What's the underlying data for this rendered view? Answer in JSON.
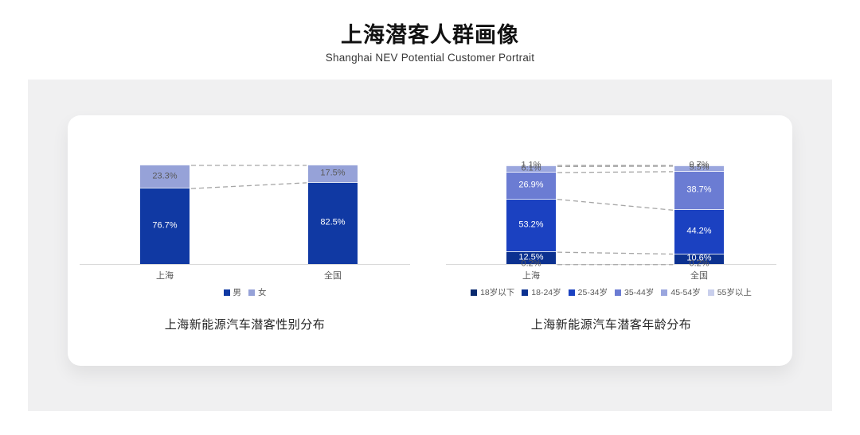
{
  "page": {
    "title": "上海潜客人群画像",
    "subtitle": "Shanghai NEV Potential Customer Portrait"
  },
  "colors": {
    "band_bg": "#F0F0F1",
    "card_bg": "#FFFFFF",
    "axis": "#D9D9D9",
    "connector": "#A6A6A6",
    "label_dark": "#595959",
    "label_light": "#FFFFFF"
  },
  "chart_data": [
    {
      "type": "bar",
      "subtype": "stacked-percent",
      "title": "上海新能源汽车潜客性别分布",
      "categories": [
        "上海",
        "全国"
      ],
      "series": [
        {
          "name": "男",
          "values": [
            76.7,
            82.5
          ],
          "color": "#1039A3",
          "label_color": "#FFFFFF"
        },
        {
          "name": "女",
          "values": [
            23.3,
            17.5
          ],
          "color": "#96A2D8",
          "label_color": "#595959"
        }
      ],
      "value_suffix": "%",
      "ylim": [
        0,
        100
      ],
      "grid": false,
      "legend_position": "bottom",
      "connectors": true
    },
    {
      "type": "bar",
      "subtype": "stacked-percent",
      "title": "上海新能源汽车潜客年龄分布",
      "categories": [
        "上海",
        "全国"
      ],
      "series": [
        {
          "name": "18岁以下",
          "values": [
            0.2,
            0.2
          ],
          "color": "#0A2A6E",
          "label_color": "#595959"
        },
        {
          "name": "18-24岁",
          "values": [
            12.5,
            10.6
          ],
          "color": "#0C3190",
          "label_color": "#FFFFFF"
        },
        {
          "name": "25-34岁",
          "values": [
            53.2,
            44.2
          ],
          "color": "#1B41C1",
          "label_color": "#FFFFFF"
        },
        {
          "name": "35-44岁",
          "values": [
            26.9,
            38.7
          ],
          "color": "#6B7CD3",
          "label_color": "#FFFFFF"
        },
        {
          "name": "45-54岁",
          "values": [
            6.1,
            5.5
          ],
          "color": "#9AA6DE",
          "label_color": "#595959"
        },
        {
          "name": "55岁以上",
          "values": [
            1.1,
            0.7
          ],
          "color": "#C9CFEC",
          "label_color": "#595959"
        }
      ],
      "value_suffix": "%",
      "ylim": [
        0,
        100
      ],
      "grid": false,
      "legend_position": "bottom",
      "connectors": true
    }
  ]
}
